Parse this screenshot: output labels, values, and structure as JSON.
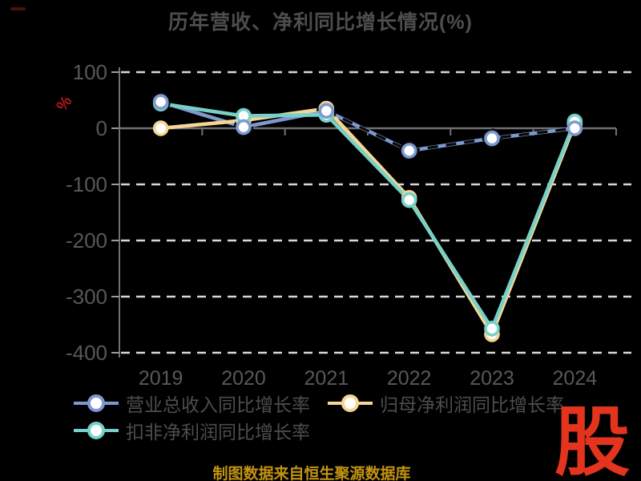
{
  "chart_data": {
    "type": "line",
    "title": "历年营收、净利同比增长情况(%)",
    "ylabel": "%",
    "x_categories": [
      "2019",
      "2020",
      "2021",
      "2022",
      "2023",
      "2024"
    ],
    "y_ticks": [
      100,
      0,
      -100,
      -200,
      -300,
      -400
    ],
    "ylim": [
      -400,
      100
    ],
    "grid": "horizontal-dashed",
    "legend_position": "bottom-left",
    "series": [
      {
        "name": "营业总收入同比增长率",
        "color": "#7e99d0",
        "values": [
          47,
          2,
          31,
          -40,
          -18,
          0
        ],
        "overlay": "black-dashed-from-2021"
      },
      {
        "name": "归母净利润同比增长率",
        "color": "#f5d694",
        "values": [
          0,
          14,
          35,
          -124,
          -367,
          8
        ]
      },
      {
        "name": "扣非净利润同比增长率",
        "color": "#78d1c8",
        "values": [
          44,
          22,
          24,
          -128,
          -357,
          12
        ]
      }
    ]
  },
  "footer": {
    "source_text": "制图数据来自恒生聚源数据库"
  },
  "logo": {
    "text": "股"
  },
  "colors": {
    "background": "#000000",
    "grid": "#ebebeb",
    "axis": "#707070",
    "tick_label": "#585858",
    "title": "#4d4d4d",
    "legend_text": "#4d4d4d",
    "ylabel": "#b0181c",
    "footer": "#c39410",
    "logo": "#e5341d",
    "marker_fill": "#ffffff",
    "overlay": "#0a0a0a"
  }
}
